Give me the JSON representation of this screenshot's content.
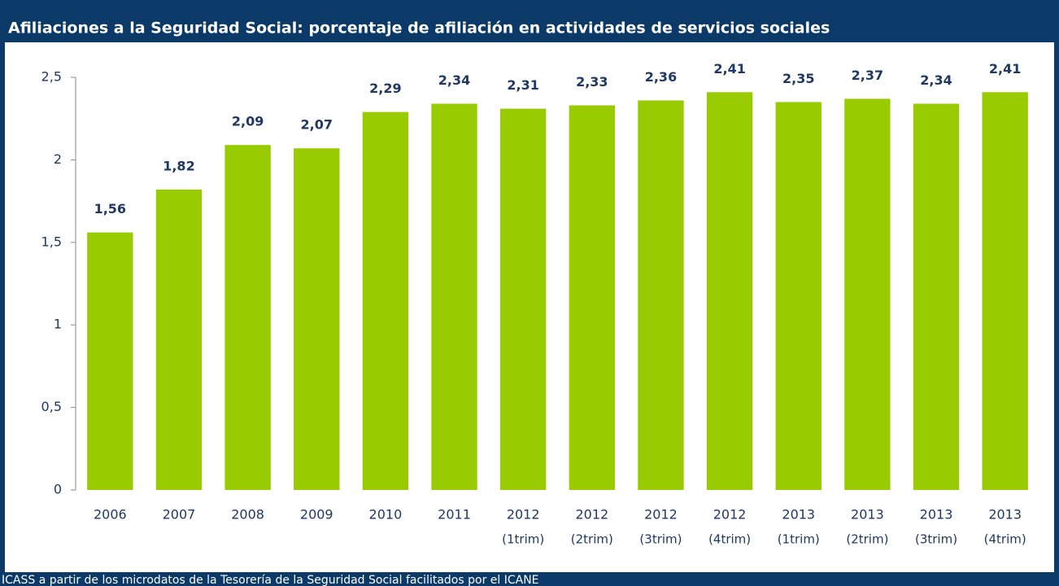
{
  "chart_data": {
    "type": "bar",
    "title": "Afiliaciones a la Seguridad Social: porcentaje de afiliación en actividades de servicios sociales",
    "source": "ICASS a partir de los microdatos de la Tesorería de la Seguridad Social facilitados por el ICANE",
    "categories": [
      [
        "2006"
      ],
      [
        "2007"
      ],
      [
        "2008"
      ],
      [
        "2009"
      ],
      [
        "2010"
      ],
      [
        "2011"
      ],
      [
        "2012",
        "(1trim)"
      ],
      [
        "2012",
        "(2trim)"
      ],
      [
        "2012",
        "(3trim)"
      ],
      [
        "2012",
        "(4trim)"
      ],
      [
        "2013",
        "(1trim)"
      ],
      [
        "2013",
        "(2trim)"
      ],
      [
        "2013",
        "(3trim)"
      ],
      [
        "2013",
        "(4trim)"
      ]
    ],
    "values": [
      1.56,
      1.82,
      2.09,
      2.07,
      2.29,
      2.34,
      2.31,
      2.33,
      2.36,
      2.41,
      2.35,
      2.37,
      2.34,
      2.41
    ],
    "value_labels": [
      "1,56",
      "1,82",
      "2,09",
      "2,07",
      "2,29",
      "2,34",
      "2,31",
      "2,33",
      "2,36",
      "2,41",
      "2,35",
      "2,37",
      "2,34",
      "2,41"
    ],
    "color": "#99cc00",
    "ylim": [
      0,
      2.5
    ],
    "yticks": [
      0,
      {
        "value": 0.5,
        "label": "0,5"
      },
      1,
      {
        "value": 1.5,
        "label": "1,5"
      },
      2,
      {
        "value": 2.5,
        "label": "2,5"
      }
    ],
    "grid": false
  }
}
